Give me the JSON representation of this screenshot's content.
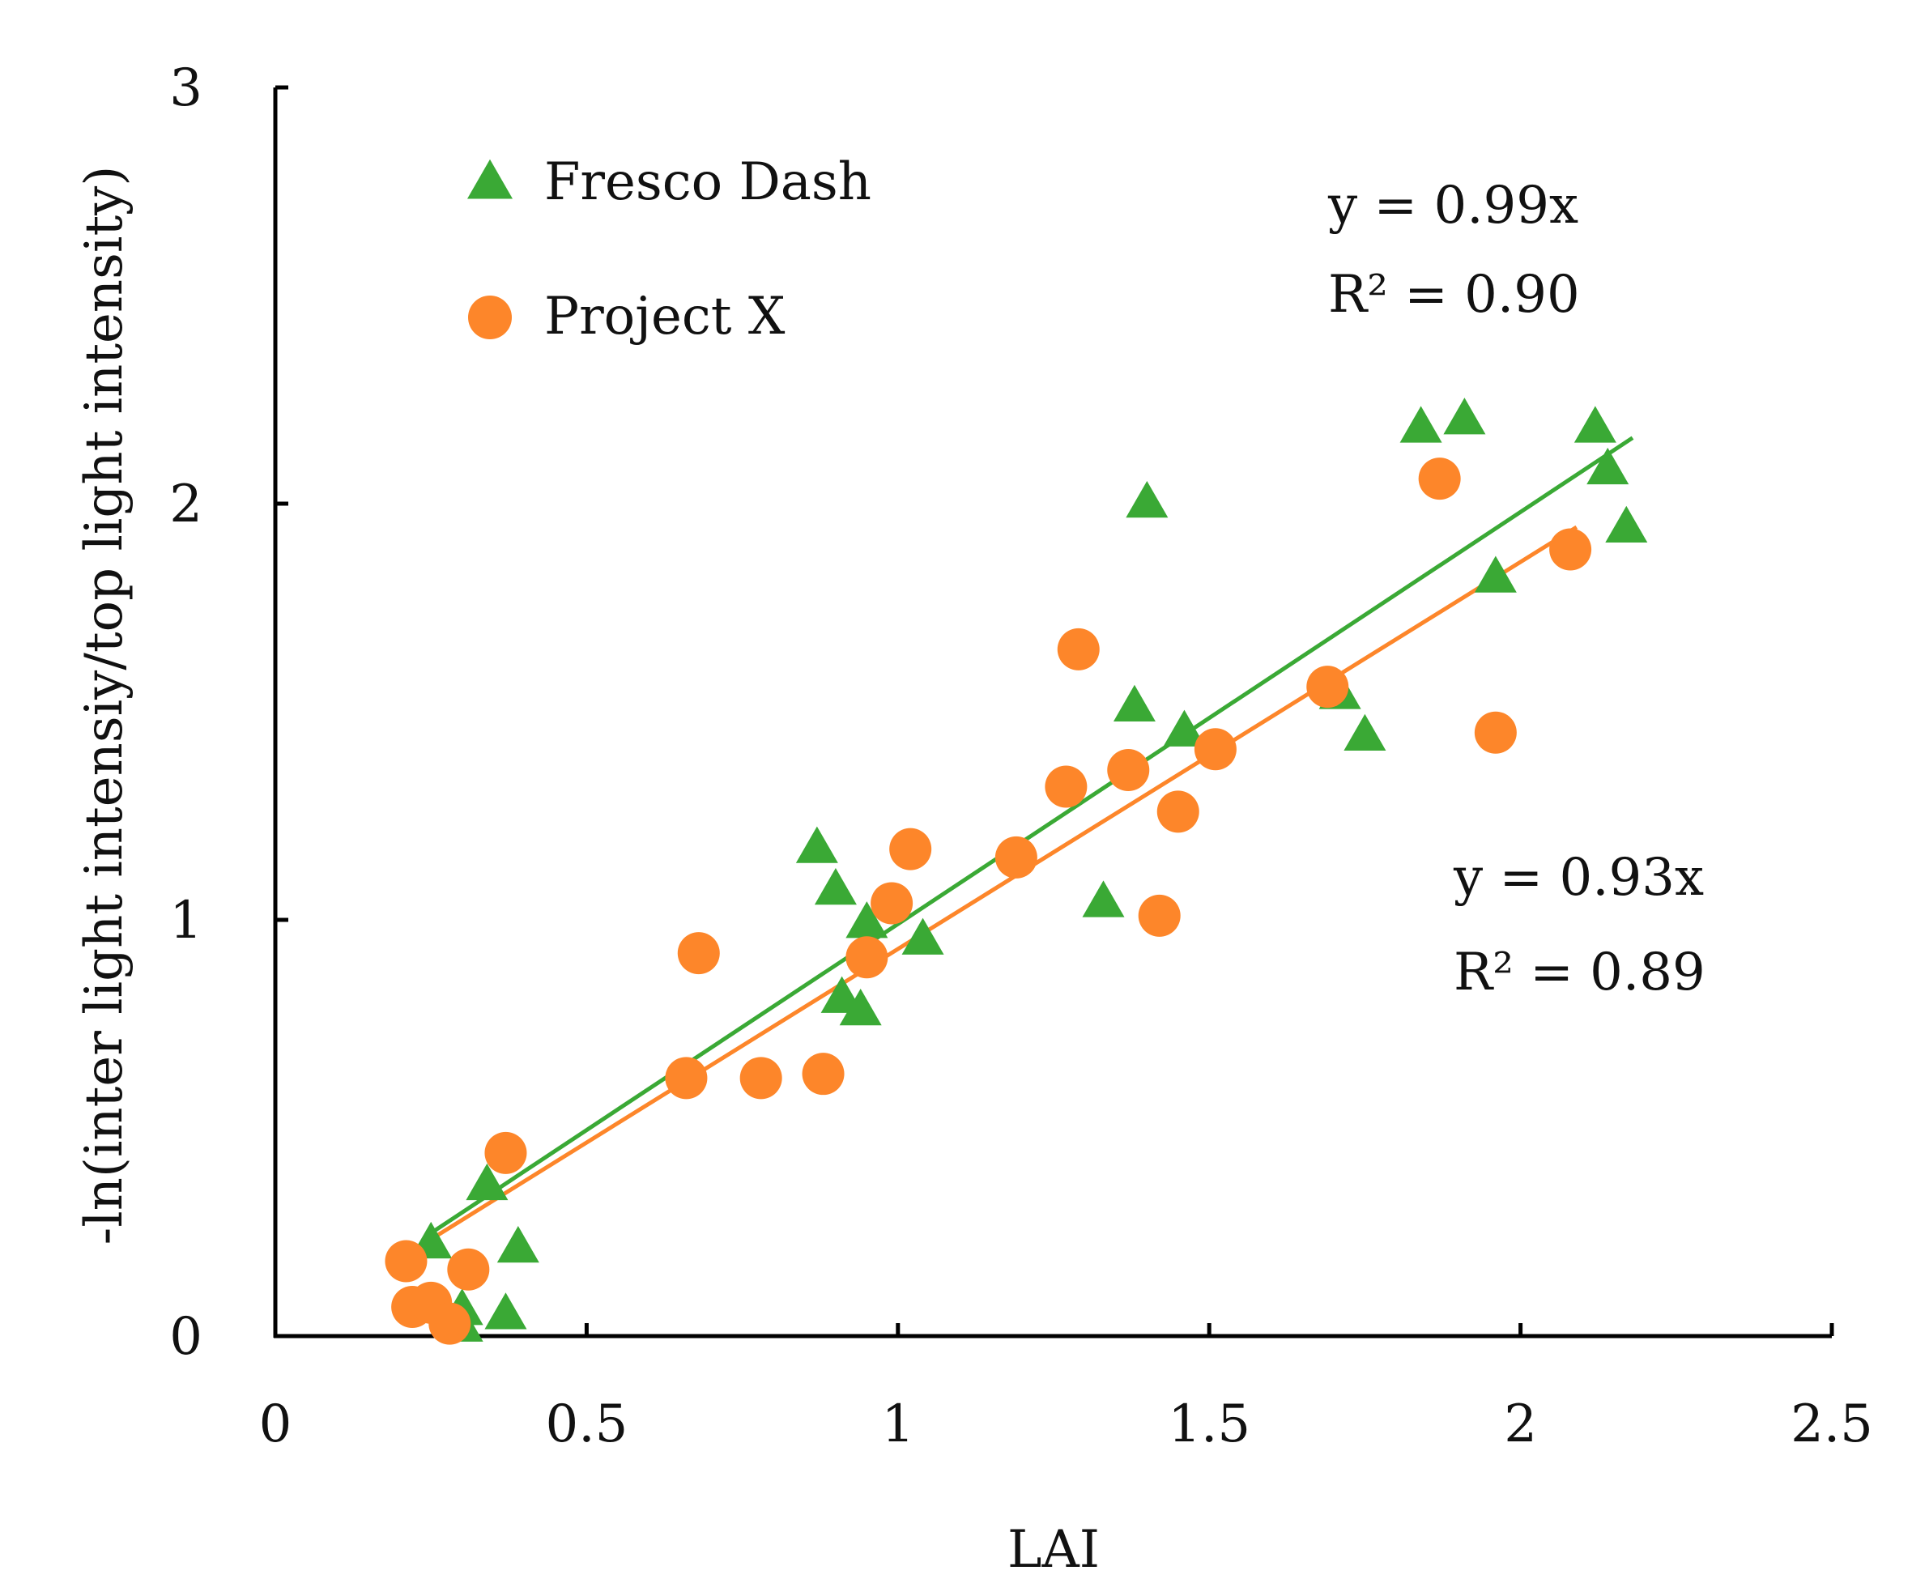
{
  "chart_data": {
    "type": "scatter",
    "title": "",
    "xlabel": "LAI",
    "ylabel": "-ln(inter light intensiy/top light intensity)",
    "xlim": [
      0,
      2.5
    ],
    "ylim": [
      0,
      3
    ],
    "x_ticks": [
      0,
      0.5,
      1,
      1.5,
      2,
      2.5
    ],
    "x_tick_labels": [
      "0",
      "0.5",
      "1",
      "1.5",
      "2",
      "2.5"
    ],
    "y_ticks": [
      0,
      1,
      2,
      3
    ],
    "y_tick_labels": [
      "0",
      "1",
      "2",
      "3"
    ],
    "grid": false,
    "legend_position": "top-left",
    "series": [
      {
        "name": "Fresco Dash",
        "marker": "triangle",
        "color": "#3aa935",
        "points": [
          [
            0.25,
            0.22
          ],
          [
            0.3,
            0.06
          ],
          [
            0.3,
            0.02
          ],
          [
            0.34,
            0.36
          ],
          [
            0.37,
            0.05
          ],
          [
            0.39,
            0.21
          ],
          [
            0.87,
            1.17
          ],
          [
            0.9,
            1.07
          ],
          [
            0.91,
            0.81
          ],
          [
            0.94,
            0.78
          ],
          [
            0.95,
            0.99
          ],
          [
            1.04,
            0.95
          ],
          [
            1.33,
            1.04
          ],
          [
            1.38,
            1.51
          ],
          [
            1.4,
            2.0
          ],
          [
            1.46,
            1.45
          ],
          [
            1.71,
            1.54
          ],
          [
            1.75,
            1.44
          ],
          [
            1.84,
            2.18
          ],
          [
            1.91,
            2.2
          ],
          [
            1.96,
            1.82
          ],
          [
            2.12,
            2.18
          ],
          [
            2.14,
            2.08
          ],
          [
            2.17,
            1.94
          ]
        ],
        "fit": {
          "x": [
            0.24,
            2.18
          ],
          "y": [
            0.2376,
            2.1582
          ]
        },
        "equation": "y = 0.99x",
        "r2": "R² = 0.90"
      },
      {
        "name": "Project X",
        "marker": "circle",
        "color": "#fd862a",
        "points": [
          [
            0.21,
            0.18
          ],
          [
            0.22,
            0.07
          ],
          [
            0.25,
            0.08
          ],
          [
            0.28,
            0.03
          ],
          [
            0.31,
            0.16
          ],
          [
            0.37,
            0.44
          ],
          [
            0.66,
            0.62
          ],
          [
            0.68,
            0.92
          ],
          [
            0.78,
            0.62
          ],
          [
            0.88,
            0.63
          ],
          [
            0.95,
            0.91
          ],
          [
            0.99,
            1.04
          ],
          [
            1.02,
            1.17
          ],
          [
            1.19,
            1.15
          ],
          [
            1.27,
            1.32
          ],
          [
            1.29,
            1.65
          ],
          [
            1.37,
            1.36
          ],
          [
            1.42,
            1.01
          ],
          [
            1.45,
            1.26
          ],
          [
            1.51,
            1.41
          ],
          [
            1.69,
            1.56
          ],
          [
            1.87,
            2.06
          ],
          [
            1.96,
            1.45
          ],
          [
            2.08,
            1.89
          ]
        ],
        "fit": {
          "x": [
            0.21,
            2.09
          ],
          "y": [
            0.1953,
            1.9437
          ]
        },
        "equation": "y = 0.93x",
        "r2": "R² = 0.89"
      }
    ]
  }
}
